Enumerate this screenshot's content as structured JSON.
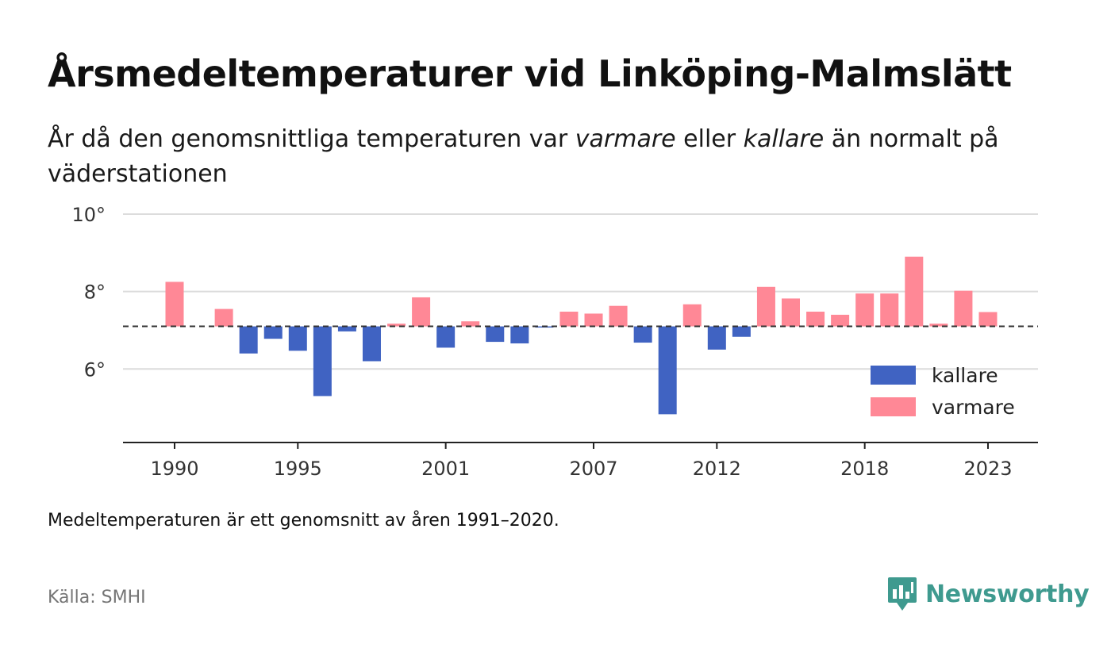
{
  "title": "Årsmedeltemperaturer vid Linköping-Malmslätt",
  "subtitle": {
    "part1": "År då den genomsnittliga temperaturen var ",
    "warm_word": "varmare",
    "part2": " eller ",
    "cold_word": "kallare",
    "part3": " än normalt på väderstationen"
  },
  "footnote": "Medeltemperaturen är ett genomsnitt av åren 1991–2020.",
  "source": "Källa: SMHI",
  "brand": {
    "name": "Newsworthy",
    "logo_icon": "newsworthy-logo-icon"
  },
  "colors": {
    "warm": "#ff8896",
    "cold": "#4063c2",
    "brand": "#3f9a8f"
  },
  "chart_data": {
    "type": "bar",
    "x": [
      1990,
      1991,
      1992,
      1993,
      1994,
      1995,
      1996,
      1997,
      1998,
      1999,
      2000,
      2001,
      2002,
      2003,
      2004,
      2005,
      2006,
      2007,
      2008,
      2009,
      2010,
      2011,
      2012,
      2013,
      2014,
      2015,
      2016,
      2017,
      2018,
      2019,
      2020,
      2021,
      2022,
      2023
    ],
    "values": [
      8.25,
      null,
      7.55,
      6.4,
      6.78,
      6.47,
      5.3,
      6.97,
      6.2,
      7.17,
      7.85,
      6.55,
      7.23,
      6.7,
      6.66,
      7.08,
      7.48,
      7.43,
      7.63,
      6.68,
      4.83,
      7.67,
      6.5,
      6.83,
      8.12,
      7.82,
      7.48,
      7.4,
      7.95,
      7.95,
      8.9,
      7.17,
      8.02,
      7.47
    ],
    "baseline": 7.1,
    "x_ticks": [
      "1990",
      "1995",
      "2001",
      "2007",
      "2012",
      "2018",
      "2023"
    ],
    "y_ticks": [
      6,
      8,
      10
    ],
    "y_tick_labels": [
      "6°",
      "8°",
      "10°"
    ],
    "ylim": [
      4.1,
      10
    ],
    "grid": true,
    "legend_position": "bottom-right",
    "series": [
      {
        "name": "kallare",
        "color": "#4063c2"
      },
      {
        "name": "varmare",
        "color": "#ff8896"
      }
    ]
  }
}
